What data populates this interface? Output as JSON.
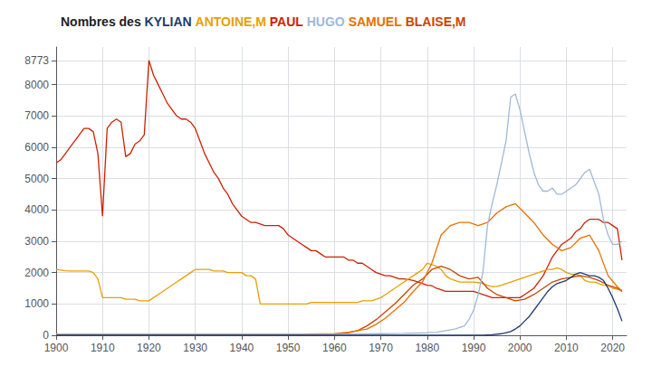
{
  "chart_data": {
    "type": "line",
    "title": "Nombres des KYLIAN ANTOINE,M PAUL HUGO SAMUEL BLAISE,M",
    "xlim": [
      1900,
      2023
    ],
    "xticks": [
      1900,
      1910,
      1920,
      1930,
      1940,
      1950,
      1960,
      1970,
      1980,
      1990,
      2000,
      2010,
      2020
    ],
    "ylim": [
      0,
      9200
    ],
    "yticks": [
      0,
      1000,
      2000,
      3000,
      4000,
      5000,
      6000,
      7000,
      8000,
      8773
    ],
    "grid": true,
    "series": [
      {
        "name": "PAUL",
        "color": "#cc2200",
        "x": [
          1900,
          1901,
          1902,
          1903,
          1904,
          1905,
          1906,
          1907,
          1908,
          1909,
          1910,
          1911,
          1912,
          1913,
          1914,
          1915,
          1916,
          1917,
          1918,
          1919,
          1920,
          1921,
          1922,
          1923,
          1924,
          1925,
          1926,
          1927,
          1928,
          1929,
          1930,
          1931,
          1932,
          1933,
          1934,
          1935,
          1936,
          1937,
          1938,
          1939,
          1940,
          1941,
          1942,
          1943,
          1944,
          1945,
          1946,
          1947,
          1948,
          1949,
          1950,
          1951,
          1952,
          1953,
          1954,
          1955,
          1956,
          1957,
          1958,
          1959,
          1960,
          1961,
          1962,
          1963,
          1964,
          1965,
          1966,
          1967,
          1968,
          1969,
          1970,
          1971,
          1972,
          1973,
          1974,
          1975,
          1976,
          1977,
          1978,
          1979,
          1980,
          1981,
          1982,
          1983,
          1984,
          1985,
          1986,
          1987,
          1988,
          1989,
          1990,
          1991,
          1992,
          1993,
          1994,
          1995,
          1996,
          1997,
          1998,
          1999,
          2000,
          2001,
          2002,
          2003,
          2004,
          2005,
          2006,
          2007,
          2008,
          2009,
          2010,
          2011,
          2012,
          2013,
          2014,
          2015,
          2016,
          2017,
          2018,
          2019,
          2020,
          2021,
          2022
        ],
        "values": [
          5500,
          5600,
          5800,
          6000,
          6200,
          6400,
          6600,
          6600,
          6500,
          5800,
          3800,
          6600,
          6800,
          6900,
          6800,
          5700,
          5800,
          6100,
          6200,
          6400,
          8773,
          8300,
          8000,
          7700,
          7400,
          7200,
          7000,
          6900,
          6900,
          6800,
          6600,
          6200,
          5800,
          5500,
          5200,
          5000,
          4700,
          4500,
          4200,
          4000,
          3800,
          3700,
          3600,
          3600,
          3550,
          3500,
          3500,
          3500,
          3500,
          3400,
          3200,
          3100,
          3000,
          2900,
          2800,
          2700,
          2700,
          2600,
          2500,
          2500,
          2500,
          2500,
          2500,
          2400,
          2400,
          2300,
          2300,
          2200,
          2100,
          2000,
          1950,
          1900,
          1900,
          1850,
          1800,
          1800,
          1780,
          1750,
          1700,
          1650,
          1600,
          1580,
          1500,
          1450,
          1400,
          1400,
          1400,
          1400,
          1400,
          1400,
          1400,
          1350,
          1300,
          1250,
          1200,
          1200,
          1200,
          1200,
          1200,
          1200,
          1200,
          1300,
          1400,
          1500,
          1700,
          1900,
          2200,
          2500,
          2700,
          2900,
          3000,
          3100,
          3300,
          3400,
          3600,
          3700,
          3700,
          3700,
          3600,
          3600,
          3500,
          3400,
          2400
        ]
      },
      {
        "name": "ANTOINE,M",
        "color": "#e8a000",
        "x": [
          1900,
          1901,
          1902,
          1903,
          1904,
          1905,
          1906,
          1907,
          1908,
          1909,
          1910,
          1911,
          1912,
          1913,
          1914,
          1915,
          1916,
          1917,
          1918,
          1919,
          1920,
          1921,
          1922,
          1923,
          1924,
          1925,
          1926,
          1927,
          1928,
          1929,
          1930,
          1931,
          1932,
          1933,
          1934,
          1935,
          1936,
          1937,
          1938,
          1939,
          1940,
          1941,
          1942,
          1943,
          1944,
          1945,
          1946,
          1947,
          1948,
          1949,
          1950,
          1951,
          1952,
          1953,
          1954,
          1955,
          1956,
          1957,
          1958,
          1959,
          1960,
          1961,
          1962,
          1963,
          1964,
          1965,
          1966,
          1967,
          1968,
          1969,
          1970,
          1971,
          1972,
          1973,
          1974,
          1975,
          1976,
          1977,
          1978,
          1979,
          1980,
          1981,
          1982,
          1983,
          1984,
          1985,
          1986,
          1987,
          1988,
          1989,
          1990,
          1991,
          1992,
          1993,
          1994,
          1995,
          1996,
          1997,
          1998,
          1999,
          2000,
          2001,
          2002,
          2003,
          2004,
          2005,
          2006,
          2007,
          2008,
          2009,
          2010,
          2011,
          2012,
          2013,
          2014,
          2015,
          2016,
          2017,
          2018,
          2019,
          2020,
          2021,
          2022
        ],
        "values": [
          2100,
          2080,
          2060,
          2050,
          2050,
          2050,
          2050,
          2050,
          2000,
          1800,
          1200,
          1200,
          1200,
          1200,
          1200,
          1150,
          1150,
          1150,
          1100,
          1100,
          1100,
          1200,
          1300,
          1400,
          1500,
          1600,
          1700,
          1800,
          1900,
          2000,
          2100,
          2100,
          2100,
          2100,
          2050,
          2050,
          2050,
          2000,
          2000,
          2000,
          2000,
          1900,
          1900,
          1800,
          1000,
          1000,
          1000,
          1000,
          1000,
          1000,
          1000,
          1000,
          1000,
          1000,
          1000,
          1050,
          1050,
          1050,
          1050,
          1050,
          1050,
          1050,
          1050,
          1050,
          1050,
          1050,
          1100,
          1100,
          1100,
          1150,
          1200,
          1300,
          1400,
          1500,
          1600,
          1700,
          1800,
          1900,
          2000,
          2100,
          2300,
          2250,
          2200,
          2100,
          1900,
          1800,
          1750,
          1700,
          1700,
          1700,
          1700,
          1680,
          1650,
          1600,
          1550,
          1560,
          1600,
          1650,
          1700,
          1750,
          1800,
          1850,
          1900,
          1950,
          2000,
          2050,
          2100,
          2100,
          2150,
          2100,
          2000,
          1950,
          1950,
          1900,
          1750,
          1700,
          1700,
          1650,
          1600,
          1580,
          1500,
          1470,
          1450
        ]
      },
      {
        "name": "BLAISE,M",
        "color": "#cc4400",
        "x": [
          1900,
          1910,
          1920,
          1930,
          1940,
          1950,
          1960,
          1963,
          1965,
          1967,
          1969,
          1971,
          1973,
          1975,
          1977,
          1979,
          1981,
          1983,
          1985,
          1987,
          1989,
          1991,
          1993,
          1995,
          1997,
          1999,
          2001,
          2003,
          2005,
          2007,
          2009,
          2011,
          2013,
          2015,
          2017,
          2019,
          2021,
          2022
        ],
        "values": [
          30,
          30,
          30,
          30,
          30,
          30,
          30,
          80,
          150,
          300,
          500,
          750,
          1000,
          1300,
          1600,
          1800,
          2100,
          2200,
          2100,
          1900,
          1800,
          1850,
          1500,
          1300,
          1200,
          1100,
          1150,
          1300,
          1500,
          1700,
          1800,
          1850,
          1900,
          1850,
          1750,
          1600,
          1500,
          1400
        ]
      },
      {
        "name": "SAMUEL",
        "color": "#e87000",
        "x": [
          1900,
          1910,
          1920,
          1930,
          1940,
          1950,
          1960,
          1963,
          1965,
          1967,
          1969,
          1971,
          1973,
          1975,
          1977,
          1979,
          1981,
          1983,
          1985,
          1987,
          1989,
          1991,
          1993,
          1995,
          1997,
          1999,
          2001,
          2003,
          2005,
          2007,
          2009,
          2011,
          2013,
          2015,
          2017,
          2019,
          2021,
          2022
        ],
        "values": [
          30,
          30,
          30,
          30,
          30,
          30,
          50,
          100,
          150,
          200,
          350,
          550,
          800,
          1050,
          1400,
          1700,
          2300,
          3200,
          3500,
          3600,
          3600,
          3500,
          3600,
          3900,
          4100,
          4200,
          3900,
          3600,
          3200,
          2900,
          2700,
          2800,
          3100,
          3200,
          2700,
          1900,
          1550,
          1400
        ]
      },
      {
        "name": "HUGO",
        "color": "#a0b8d8",
        "x": [
          1900,
          1910,
          1920,
          1930,
          1940,
          1950,
          1960,
          1970,
          1975,
          1980,
          1982,
          1984,
          1986,
          1988,
          1989,
          1990,
          1991,
          1992,
          1993,
          1994,
          1995,
          1996,
          1997,
          1998,
          1999,
          2000,
          2001,
          2002,
          2003,
          2004,
          2005,
          2006,
          2007,
          2008,
          2009,
          2010,
          2011,
          2012,
          2013,
          2014,
          2015,
          2016,
          2017,
          2018,
          2019,
          2020,
          2021,
          2022
        ],
        "values": [
          30,
          30,
          30,
          30,
          30,
          30,
          30,
          50,
          60,
          80,
          100,
          150,
          200,
          300,
          500,
          800,
          1300,
          2000,
          3500,
          4200,
          4800,
          5500,
          6200,
          7600,
          7700,
          7200,
          6500,
          5800,
          5200,
          4800,
          4600,
          4600,
          4700,
          4500,
          4500,
          4600,
          4700,
          4800,
          5000,
          5200,
          5300,
          4900,
          4500,
          3700,
          3200,
          2900,
          2900,
          3000
        ]
      },
      {
        "name": "KYLIAN",
        "color": "#1e3a6e",
        "x": [
          1900,
          1970,
          1980,
          1988,
          1990,
          1992,
          1994,
          1996,
          1997,
          1998,
          1999,
          2000,
          2001,
          2002,
          2003,
          2004,
          2005,
          2006,
          2007,
          2008,
          2009,
          2010,
          2011,
          2012,
          2013,
          2014,
          2015,
          2016,
          2017,
          2018,
          2019,
          2020,
          2021,
          2022
        ],
        "values": [
          0,
          0,
          0,
          0,
          0,
          0,
          20,
          50,
          80,
          120,
          200,
          300,
          450,
          600,
          800,
          1000,
          1200,
          1400,
          1550,
          1650,
          1700,
          1750,
          1850,
          1950,
          2000,
          1950,
          1900,
          1900,
          1850,
          1750,
          1500,
          1200,
          850,
          450
        ]
      }
    ]
  }
}
